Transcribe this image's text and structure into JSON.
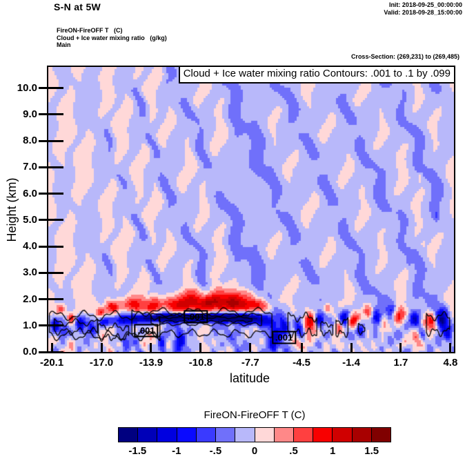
{
  "page_title": "S-N at 5W",
  "meta": {
    "init_line": "Init: 2018-09-25_00:00:00",
    "valid_line": "Valid: 2018-09-28_15:00:00",
    "legend_lines": [
      "FireON-FireOFF T   (C)",
      "Cloud + Ice water mixing ratio   (g/kg)",
      "Main"
    ],
    "cross_section": "Cross-Section: (269,231) to (269,485)"
  },
  "chart_data": {
    "type": "heatmap",
    "subtype": "filled-contour-cross-section",
    "title": "S-N at 5W",
    "header": "Cloud + Ice water mixing ratio Contours: .001 to .1 by .099",
    "xlabel": "latitude",
    "ylabel": "Height (km)",
    "x_range": [
      -20.32,
      5.02
    ],
    "y_range": [
      0,
      10.8
    ],
    "x_ticks": [
      {
        "v": -20.1,
        "label": "-20.1"
      },
      {
        "v": -17.0,
        "label": "-17.0"
      },
      {
        "v": -13.9,
        "label": "-13.9"
      },
      {
        "v": -10.8,
        "label": "-10.8"
      },
      {
        "v": -7.7,
        "label": "-7.7"
      },
      {
        "v": -4.5,
        "label": "-4.5"
      },
      {
        "v": -1.4,
        "label": "-1.4"
      },
      {
        "v": 1.7,
        "label": "1.7"
      },
      {
        "v": 4.8,
        "label": "4.8"
      }
    ],
    "y_ticks": [
      {
        "v": 0,
        "label": "0.0"
      },
      {
        "v": 1,
        "label": "1.0"
      },
      {
        "v": 2,
        "label": "2.0"
      },
      {
        "v": 3,
        "label": "3.0"
      },
      {
        "v": 4,
        "label": "4.0"
      },
      {
        "v": 5,
        "label": "5.0"
      },
      {
        "v": 6,
        "label": "6.0"
      },
      {
        "v": 7,
        "label": "7.0"
      },
      {
        "v": 8,
        "label": "8.0"
      },
      {
        "v": 9,
        "label": "9.0"
      },
      {
        "v": 10,
        "label": "10.0"
      }
    ],
    "fill_levels": {
      "min": -1.75,
      "max": 1.75,
      "step": 0.25
    },
    "palette": [
      "#000080",
      "#0000b8",
      "#0000e0",
      "#0a0aff",
      "#3a3aff",
      "#7070fa",
      "#b8b8fa",
      "#ffd8d8",
      "#ff8888",
      "#ff4040",
      "#f80000",
      "#d00000",
      "#a80000",
      "#800000"
    ],
    "colorbar": {
      "title": "FireON-FireOFF T  (C)",
      "tick_labels": [
        "-1.5",
        "-1",
        "-.5",
        "0",
        ".5",
        "1",
        "1.5"
      ],
      "tick_boundary_indices": [
        1,
        3,
        5,
        7,
        9,
        11,
        13
      ]
    },
    "contours": {
      "field": "Cloud + Ice water mixing ratio (g/kg)",
      "levels_text": ".001 to .1 by .099",
      "labels": [
        {
          "text": ".001",
          "lat": -14.2,
          "km": 0.8
        },
        {
          "text": ".001",
          "lat": -11.1,
          "km": 1.33
        },
        {
          "text": ".001",
          "lat": -5.6,
          "km": 0.55
        }
      ],
      "loops": [
        [
          -20.25,
          -13.35,
          1.38,
          0.62,
          0.14,
          0.55,
          0.3
        ],
        [
          -19.95,
          -17.25,
          1.12,
          0.78,
          0.1,
          0.8,
          1.2
        ],
        [
          -17.2,
          -15.3,
          0.95,
          0.55,
          0.1,
          1.1,
          0.5
        ],
        [
          -15.1,
          -6.35,
          1.52,
          0.7,
          0.12,
          0.5,
          2.1
        ],
        [
          -13.9,
          -7.0,
          1.4,
          1.05,
          0.05,
          0.65,
          0.6
        ],
        [
          -13.4,
          -7.6,
          1.3,
          1.16,
          0.03,
          0.8,
          1.5
        ],
        [
          -5.35,
          -3.55,
          1.32,
          0.72,
          0.13,
          1.0,
          0.8
        ],
        [
          -3.3,
          -2.55,
          1.05,
          0.72,
          0.08,
          1.3,
          0.2
        ],
        [
          -2.35,
          -1.6,
          1.18,
          0.7,
          0.1,
          1.2,
          2.4
        ],
        [
          -0.95,
          -0.55,
          1.0,
          0.74,
          0.06,
          1.5,
          1.0
        ],
        [
          3.3,
          4.75,
          1.36,
          0.76,
          0.12,
          0.9,
          1.9
        ]
      ]
    },
    "field_model": {
      "base": 0.12,
      "streaks": [
        [
          -19.9,
          0.35,
          -0.3
        ],
        [
          -18.7,
          0.3,
          -0.26
        ],
        [
          -17.3,
          0.55,
          -0.3
        ],
        [
          -16.2,
          0.3,
          -0.26
        ],
        [
          -15.1,
          0.4,
          -0.3
        ],
        [
          -14.2,
          0.3,
          -0.27
        ],
        [
          -13.3,
          0.35,
          -0.28
        ],
        [
          -12.3,
          0.6,
          -0.3
        ],
        [
          -11.1,
          0.4,
          -0.27
        ],
        [
          -10.2,
          0.5,
          -0.28
        ],
        [
          -9.0,
          0.45,
          -0.27
        ],
        [
          -8.0,
          0.9,
          -0.3
        ],
        [
          -6.8,
          0.6,
          -0.28
        ],
        [
          -5.7,
          0.55,
          -0.27
        ],
        [
          -4.6,
          0.6,
          -0.29
        ],
        [
          -3.4,
          0.55,
          -0.27
        ],
        [
          -2.3,
          0.6,
          -0.29
        ],
        [
          -1.2,
          0.5,
          -0.27
        ],
        [
          -0.1,
          0.6,
          -0.29
        ],
        [
          1.1,
          0.65,
          -0.28
        ],
        [
          2.3,
          0.5,
          -0.27
        ],
        [
          3.3,
          0.55,
          -0.29
        ],
        [
          4.4,
          0.6,
          -0.3
        ]
      ],
      "blobs": [
        [
          -11.5,
          1.75,
          4.8,
          0.4,
          0.3
        ],
        [
          -16.3,
          1.7,
          0.5,
          0.25,
          0.7
        ],
        [
          -15.3,
          1.8,
          0.6,
          0.25,
          0.65
        ],
        [
          -14.0,
          1.75,
          0.8,
          0.3,
          0.6
        ],
        [
          -12.5,
          1.8,
          0.9,
          0.3,
          0.7
        ],
        [
          -11.0,
          1.85,
          0.9,
          0.3,
          0.8
        ],
        [
          -9.8,
          1.9,
          0.7,
          0.35,
          1.0
        ],
        [
          -8.8,
          1.85,
          0.6,
          0.3,
          1.05
        ],
        [
          -7.8,
          1.8,
          0.7,
          0.3,
          0.85
        ],
        [
          -6.9,
          1.75,
          0.5,
          0.25,
          0.65
        ],
        [
          -16.8,
          1.15,
          0.4,
          0.2,
          -1.0
        ],
        [
          -15.9,
          1.2,
          0.5,
          0.2,
          -0.9
        ],
        [
          -14.8,
          1.25,
          0.8,
          0.18,
          -1.2
        ],
        [
          -13.5,
          1.3,
          1.0,
          0.16,
          -1.5
        ],
        [
          -12.0,
          1.3,
          1.2,
          0.15,
          -1.75
        ],
        [
          -10.5,
          1.3,
          1.2,
          0.15,
          -1.85
        ],
        [
          -9.0,
          1.3,
          1.0,
          0.16,
          -1.75
        ],
        [
          -7.8,
          1.25,
          0.8,
          0.2,
          -1.4
        ],
        [
          -6.9,
          1.2,
          0.5,
          0.25,
          -1.0
        ],
        [
          -19.9,
          1.0,
          0.3,
          0.3,
          -1.1
        ],
        [
          -19.3,
          0.8,
          0.25,
          0.25,
          -0.75
        ],
        [
          -18.3,
          1.1,
          0.3,
          0.3,
          -1.3
        ],
        [
          -17.6,
          0.9,
          0.3,
          0.25,
          -0.85
        ],
        [
          -19.6,
          1.6,
          0.25,
          0.2,
          0.85
        ],
        [
          -18.9,
          1.3,
          0.2,
          0.2,
          1.0
        ],
        [
          -17.1,
          1.5,
          0.3,
          0.2,
          0.9
        ],
        [
          -15.5,
          0.4,
          0.3,
          0.5,
          -0.65
        ],
        [
          -13.2,
          0.3,
          0.25,
          0.45,
          -0.75
        ],
        [
          -12.1,
          0.4,
          0.3,
          0.5,
          -0.95
        ],
        [
          -6.2,
          0.5,
          0.35,
          0.6,
          -1.1
        ],
        [
          -5.6,
          1.0,
          0.3,
          0.4,
          -0.85
        ],
        [
          -4.0,
          1.1,
          0.45,
          0.35,
          1.1
        ],
        [
          -2.9,
          1.6,
          0.3,
          0.25,
          0.75
        ],
        [
          -2.2,
          0.9,
          0.3,
          0.3,
          0.9
        ],
        [
          -1.3,
          1.2,
          0.35,
          0.3,
          1.15
        ],
        [
          -0.3,
          1.5,
          0.3,
          0.25,
          0.7
        ],
        [
          0.6,
          1.0,
          0.3,
          0.3,
          0.8
        ],
        [
          1.6,
          1.4,
          0.35,
          0.3,
          0.85
        ],
        [
          3.6,
          1.1,
          0.4,
          0.35,
          1.15
        ],
        [
          -4.6,
          0.9,
          0.3,
          0.35,
          -0.95
        ],
        [
          -3.4,
          1.2,
          0.3,
          0.3,
          -1.1
        ],
        [
          -1.8,
          1.3,
          0.3,
          0.3,
          -1.3
        ],
        [
          -0.8,
          0.8,
          0.3,
          0.3,
          -0.95
        ],
        [
          0.2,
          1.3,
          0.3,
          0.3,
          -0.85
        ],
        [
          1.1,
          1.6,
          0.3,
          0.25,
          -0.75
        ],
        [
          2.6,
          1.2,
          0.35,
          0.3,
          -1.2
        ],
        [
          3.0,
          0.6,
          0.25,
          0.3,
          -0.85
        ],
        [
          4.3,
          1.2,
          0.35,
          0.4,
          -1.4
        ],
        [
          4.7,
          0.7,
          0.25,
          0.3,
          -0.95
        ],
        [
          -9.5,
          2.3,
          0.8,
          0.3,
          0.4
        ],
        [
          -8.0,
          2.2,
          0.6,
          0.25,
          0.38
        ],
        [
          -11.5,
          2.2,
          0.7,
          0.25,
          0.35
        ],
        [
          -4.9,
          0.35,
          0.3,
          0.25,
          0.75
        ],
        [
          -2.0,
          0.25,
          0.3,
          0.2,
          0.65
        ],
        [
          1.9,
          0.3,
          0.25,
          0.2,
          0.6
        ],
        [
          2.8,
          0.5,
          0.4,
          0.3,
          0.75
        ],
        [
          2.9,
          6.6,
          0.12,
          0.15,
          0.45
        ],
        [
          3.1,
          4.1,
          0.1,
          0.12,
          0.38
        ],
        [
          3.9,
          5.2,
          0.15,
          0.2,
          -0.35
        ],
        [
          2.2,
          3.4,
          0.15,
          0.2,
          -0.3
        ]
      ],
      "noise": {
        "amp": 0.27,
        "km_limit": 2.6
      }
    }
  }
}
